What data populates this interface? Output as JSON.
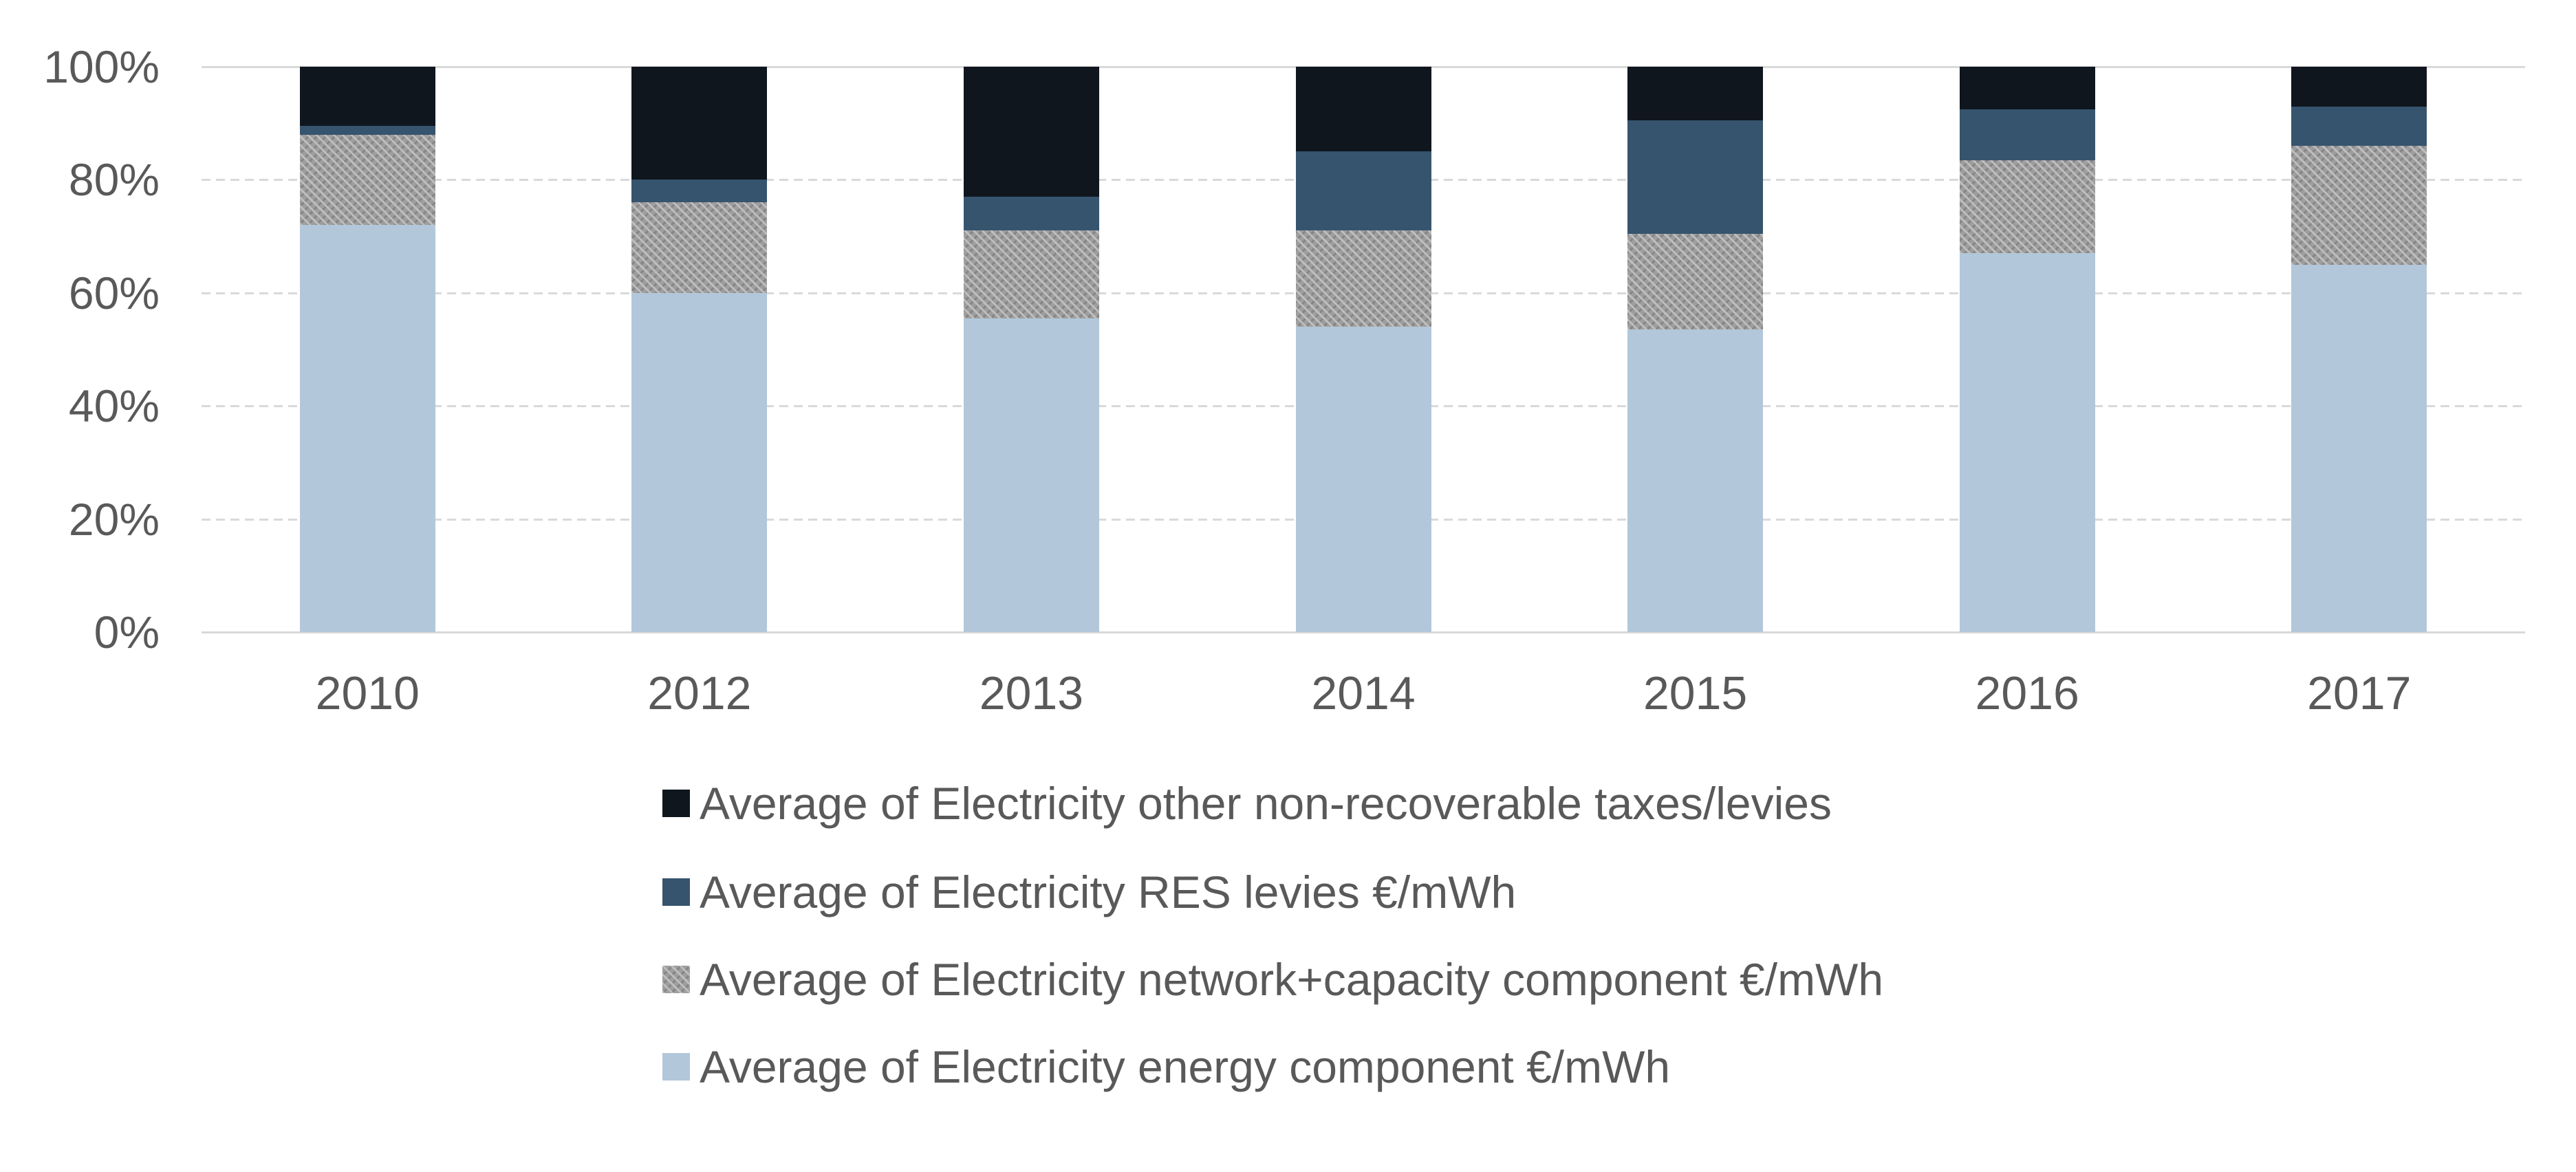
{
  "chart_data": {
    "type": "bar",
    "stacked": true,
    "percent_stacked": true,
    "title": "",
    "xlabel": "",
    "ylabel": "",
    "categories": [
      "2010",
      "2012",
      "2013",
      "2014",
      "2015",
      "2016",
      "2017"
    ],
    "series": [
      {
        "key": "other-taxes",
        "name": "Average of Electricity other non-recoverable taxes/levies",
        "color": "#10161E",
        "pattern": "solid",
        "values": [
          10.5,
          20,
          23,
          15,
          9.5,
          7.5,
          7
        ]
      },
      {
        "key": "res-levies",
        "name": "Average of Electricity RES levies €/mWh",
        "color": "#36546E",
        "pattern": "solid",
        "values": [
          1.5,
          4,
          6,
          14,
          20,
          9,
          7
        ]
      },
      {
        "key": "network-capacity",
        "name": "Average of Electricity network+capacity component €/mWh",
        "color": "#9E9E9E",
        "pattern": "woven",
        "values": [
          16,
          16,
          15.5,
          17,
          17,
          16.5,
          21
        ]
      },
      {
        "key": "energy",
        "name": "Average of Electricity energy component €/mWh",
        "color": "#B2C7DA",
        "pattern": "solid",
        "values": [
          72,
          60,
          55.5,
          54,
          53.5,
          67,
          65
        ]
      }
    ],
    "series_listed_top_to_bottom": true,
    "ylim": [
      0,
      100
    ],
    "yticks_top_to_bottom": [
      "100%",
      "80%",
      "60%",
      "40%",
      "20%",
      "0%"
    ],
    "grid": true,
    "gridline_color": "#D9D9D9",
    "tick_text_color": "#595959",
    "legend_position": "bottom"
  }
}
